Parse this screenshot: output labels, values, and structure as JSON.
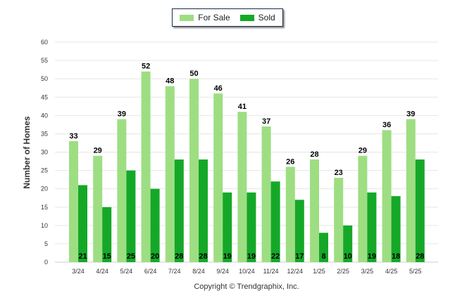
{
  "chart_data": {
    "type": "bar",
    "ylabel": "Number of Homes",
    "ylim": [
      0,
      60
    ],
    "yticks": [
      0,
      5,
      10,
      15,
      20,
      25,
      30,
      35,
      40,
      45,
      50,
      55,
      60
    ],
    "categories": [
      "3/24",
      "4/24",
      "5/24",
      "6/24",
      "7/24",
      "8/24",
      "9/24",
      "10/24",
      "11/24",
      "12/24",
      "1/25",
      "2/25",
      "3/25",
      "4/25",
      "5/25"
    ],
    "series": [
      {
        "name": "For Sale",
        "color": "#9ede82",
        "values": [
          33,
          29,
          39,
          52,
          48,
          50,
          46,
          41,
          37,
          26,
          28,
          23,
          29,
          36,
          39
        ]
      },
      {
        "name": "Sold",
        "color": "#15a828",
        "values": [
          21,
          15,
          25,
          20,
          28,
          28,
          19,
          19,
          22,
          17,
          8,
          10,
          19,
          18,
          28
        ]
      }
    ],
    "legend": "top-center",
    "grid": true
  },
  "footer": {
    "copyright": "Copyright © Trendgraphix, Inc."
  }
}
